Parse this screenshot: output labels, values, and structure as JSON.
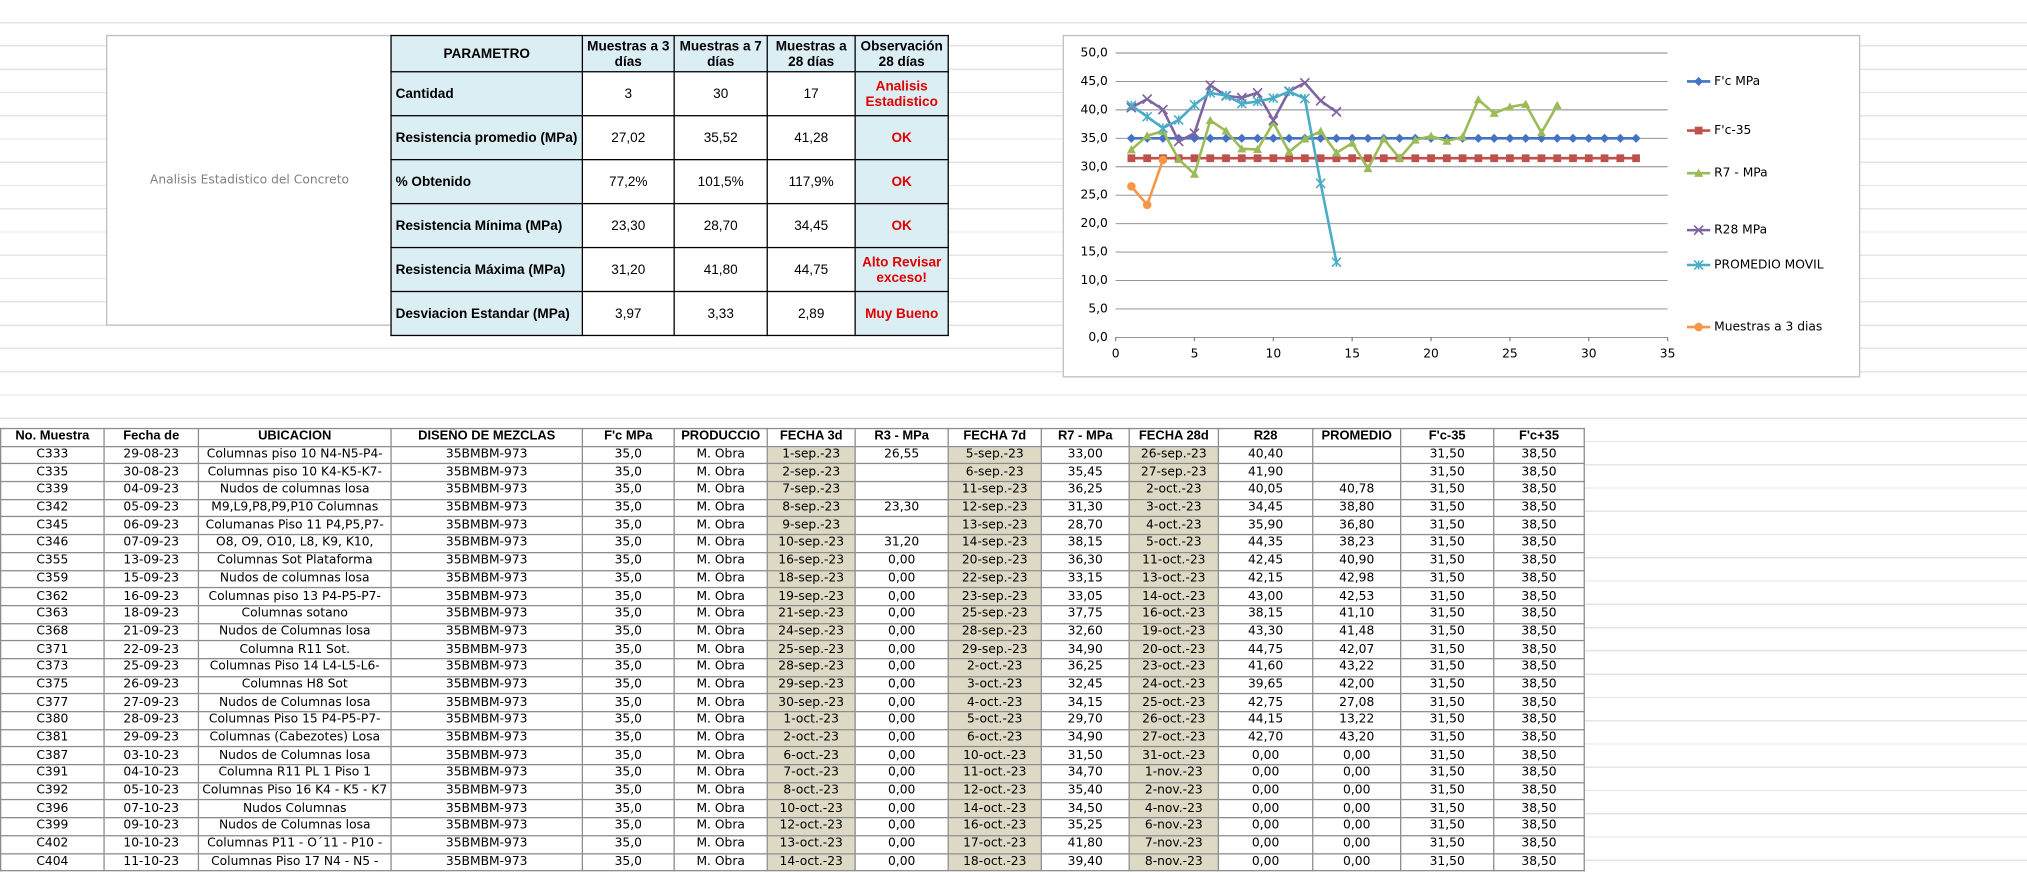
{
  "side_label": "Analisis Estadistico del Concreto",
  "summary_table": {
    "header": [
      "PARAMETRO",
      "Muestras a 3 días",
      "Muestras a 7 días",
      "Muestras a 28 días",
      "Observación 28 días"
    ],
    "rows": [
      [
        "Cantidad",
        "3",
        "30",
        "17",
        "Analisis Estadistico"
      ],
      [
        "Resistencia promedio (MPa)",
        "27,02",
        "35,52",
        "41,28",
        "OK"
      ],
      [
        "% Obtenido",
        "77,2%",
        "101,5%",
        "117,9%",
        "OK"
      ],
      [
        "Resistencia Mínima (MPa)",
        "23,30",
        "28,70",
        "34,45",
        "OK"
      ],
      [
        "Resistencia Máxima (MPa)",
        "31,20",
        "41,80",
        "44,75",
        "Alto Revisar exceso!"
      ],
      [
        "Desviacion Estandar  (MPa)",
        "3,97",
        "3,33",
        "2,89",
        "Muy Bueno"
      ]
    ]
  },
  "chart_data": {
    "type": "line",
    "xlim": [
      0,
      35
    ],
    "xticks": [
      0,
      5,
      10,
      15,
      20,
      25,
      30,
      35
    ],
    "ylim": [
      0,
      50
    ],
    "yticks": [
      {
        "value": 0,
        "label": "0,0"
      },
      {
        "value": 5,
        "label": "5,0"
      },
      {
        "value": 10,
        "label": "10,0"
      },
      {
        "value": 15,
        "label": "15,0"
      },
      {
        "value": 20,
        "label": "20,0"
      },
      {
        "value": 25,
        "label": "25,0"
      },
      {
        "value": 30,
        "label": "30,0"
      },
      {
        "value": 35,
        "label": "35,0"
      },
      {
        "value": 40,
        "label": "40,0"
      },
      {
        "value": 45,
        "label": "45,0"
      },
      {
        "value": 50,
        "label": "50,0"
      }
    ],
    "grid": true,
    "legend": "right",
    "series": [
      {
        "name": "F'c  MPa",
        "color": "#4472c4",
        "marker": "diamond",
        "x": [
          1,
          2,
          3,
          4,
          5,
          6,
          7,
          8,
          9,
          10,
          11,
          12,
          13,
          14,
          15,
          16,
          17,
          18,
          19,
          20,
          21,
          22,
          23,
          24,
          25,
          26,
          27,
          28,
          29,
          30,
          31,
          32,
          33
        ],
        "values": [
          35,
          35,
          35,
          35,
          35,
          35,
          35,
          35,
          35,
          35,
          35,
          35,
          35,
          35,
          35,
          35,
          35,
          35,
          35,
          35,
          35,
          35,
          35,
          35,
          35,
          35,
          35,
          35,
          35,
          35,
          35,
          35,
          35
        ]
      },
      {
        "name": "F'c-35",
        "color": "#c0504d",
        "marker": "square",
        "x": [
          1,
          2,
          3,
          4,
          5,
          6,
          7,
          8,
          9,
          10,
          11,
          12,
          13,
          14,
          15,
          16,
          17,
          18,
          19,
          20,
          21,
          22,
          23,
          24,
          25,
          26,
          27,
          28,
          29,
          30,
          31,
          32,
          33
        ],
        "values": [
          31.5,
          31.5,
          31.5,
          31.5,
          31.5,
          31.5,
          31.5,
          31.5,
          31.5,
          31.5,
          31.5,
          31.5,
          31.5,
          31.5,
          31.5,
          31.5,
          31.5,
          31.5,
          31.5,
          31.5,
          31.5,
          31.5,
          31.5,
          31.5,
          31.5,
          31.5,
          31.5,
          31.5,
          31.5,
          31.5,
          31.5,
          31.5,
          31.5
        ]
      },
      {
        "name": "R7 - MPa",
        "color": "#9bbb59",
        "marker": "triangle",
        "x": [
          1,
          2,
          3,
          4,
          5,
          6,
          7,
          8,
          9,
          10,
          11,
          12,
          13,
          14,
          15,
          16,
          17,
          18,
          19,
          20,
          21,
          22,
          23,
          24,
          25,
          26,
          27,
          28
        ],
        "values": [
          33.0,
          35.45,
          36.25,
          31.3,
          28.7,
          38.15,
          36.3,
          33.15,
          33.05,
          37.75,
          32.6,
          34.9,
          36.25,
          32.45,
          34.15,
          29.7,
          34.9,
          31.5,
          34.7,
          35.4,
          34.5,
          35.25,
          41.8,
          39.4,
          40.5,
          41.0,
          36.0,
          40.8
        ]
      },
      {
        "name": "R28 MPa",
        "color": "#8064a2",
        "marker": "x",
        "x": [
          1,
          2,
          3,
          4,
          5,
          6,
          7,
          8,
          9,
          10,
          11,
          12,
          13,
          14
        ],
        "values": [
          40.4,
          41.9,
          40.05,
          34.45,
          35.9,
          44.35,
          42.45,
          42.15,
          43.0,
          38.15,
          43.3,
          44.75,
          41.6,
          39.65
        ]
      },
      {
        "name": "PROMEDIO MOVIL",
        "color": "#4bacc6",
        "marker": "star",
        "x": [
          1,
          2,
          3,
          4,
          5,
          6,
          7,
          8,
          9,
          10,
          11,
          12,
          13,
          14
        ],
        "values": [
          40.78,
          38.8,
          36.8,
          38.23,
          40.9,
          42.98,
          42.53,
          41.1,
          41.48,
          42.07,
          43.22,
          42.0,
          27.08,
          13.22
        ]
      },
      {
        "name": "Muestras a 3 dias",
        "color": "#f79646",
        "marker": "circle",
        "x": [
          1,
          2,
          3
        ],
        "values": [
          26.55,
          23.3,
          31.2
        ]
      }
    ]
  },
  "main_table": {
    "header": [
      "No. Muestra",
      "Fecha de",
      "UBICACION",
      "DISEÑO DE MEZCLAS",
      "F'c  MPa",
      "PRODUCCIO",
      "FECHA 3d",
      "R3 - MPa",
      "FECHA 7d",
      "R7 - MPa",
      "FECHA 28d",
      "R28",
      "PROMEDIO",
      "F'c-35",
      "F'c+35"
    ],
    "rows": [
      [
        "C333",
        "29-08-23",
        "Columnas piso 10 N4-N5-P4-",
        "35BMBM-973",
        "35,0",
        "M. Obra",
        "1-sep.-23",
        "26,55",
        "5-sep.-23",
        "33,00",
        "26-sep.-23",
        "40,40",
        "",
        "31,50",
        "38,50"
      ],
      [
        "C335",
        "30-08-23",
        "Columnas piso 10 K4-K5-K7-",
        "35BMBM-973",
        "35,0",
        "M. Obra",
        "2-sep.-23",
        "",
        "6-sep.-23",
        "35,45",
        "27-sep.-23",
        "41,90",
        "",
        "31,50",
        "38,50"
      ],
      [
        "C339",
        "04-09-23",
        "Nudos de columnas losa",
        "35BMBM-973",
        "35,0",
        "M. Obra",
        "7-sep.-23",
        "",
        "11-sep.-23",
        "36,25",
        "2-oct.-23",
        "40,05",
        "40,78",
        "31,50",
        "38,50"
      ],
      [
        "C342",
        "05-09-23",
        "M9,L9,P8,P9,P10 Columnas",
        "35BMBM-973",
        "35,0",
        "M. Obra",
        "8-sep.-23",
        "23,30",
        "12-sep.-23",
        "31,30",
        "3-oct.-23",
        "34,45",
        "38,80",
        "31,50",
        "38,50"
      ],
      [
        "C345",
        "06-09-23",
        "Columanas Piso 11 P4,P5,P7-",
        "35BMBM-973",
        "35,0",
        "M. Obra",
        "9-sep.-23",
        "",
        "13-sep.-23",
        "28,70",
        "4-oct.-23",
        "35,90",
        "36,80",
        "31,50",
        "38,50"
      ],
      [
        "C346",
        "07-09-23",
        "O8, O9, O10, L8, K9, K10,",
        "35BMBM-973",
        "35,0",
        "M. Obra",
        "10-sep.-23",
        "31,20",
        "14-sep.-23",
        "38,15",
        "5-oct.-23",
        "44,35",
        "38,23",
        "31,50",
        "38,50"
      ],
      [
        "C355",
        "13-09-23",
        "Columnas Sot Plataforma",
        "35BMBM-973",
        "35,0",
        "M. Obra",
        "16-sep.-23",
        "0,00",
        "20-sep.-23",
        "36,30",
        "11-oct.-23",
        "42,45",
        "40,90",
        "31,50",
        "38,50"
      ],
      [
        "C359",
        "15-09-23",
        "Nudos de columnas losa",
        "35BMBM-973",
        "35,0",
        "M. Obra",
        "18-sep.-23",
        "0,00",
        "22-sep.-23",
        "33,15",
        "13-oct.-23",
        "42,15",
        "42,98",
        "31,50",
        "38,50"
      ],
      [
        "C362",
        "16-09-23",
        "Columnas piso 13 P4-P5-P7-",
        "35BMBM-973",
        "35,0",
        "M. Obra",
        "19-sep.-23",
        "0,00",
        "23-sep.-23",
        "33,05",
        "14-oct.-23",
        "43,00",
        "42,53",
        "31,50",
        "38,50"
      ],
      [
        "C363",
        "18-09-23",
        "Columnas sotano",
        "35BMBM-973",
        "35,0",
        "M. Obra",
        "21-sep.-23",
        "0,00",
        "25-sep.-23",
        "37,75",
        "16-oct.-23",
        "38,15",
        "41,10",
        "31,50",
        "38,50"
      ],
      [
        "C368",
        "21-09-23",
        "Nudos de Columnas losa",
        "35BMBM-973",
        "35,0",
        "M. Obra",
        "24-sep.-23",
        "0,00",
        "28-sep.-23",
        "32,60",
        "19-oct.-23",
        "43,30",
        "41,48",
        "31,50",
        "38,50"
      ],
      [
        "C371",
        "22-09-23",
        "Columna R11 Sot.",
        "35BMBM-973",
        "35,0",
        "M. Obra",
        "25-sep.-23",
        "0,00",
        "29-sep.-23",
        "34,90",
        "20-oct.-23",
        "44,75",
        "42,07",
        "31,50",
        "38,50"
      ],
      [
        "C373",
        "25-09-23",
        "Columnas Piso 14 L4-L5-L6-",
        "35BMBM-973",
        "35,0",
        "M. Obra",
        "28-sep.-23",
        "0,00",
        "2-oct.-23",
        "36,25",
        "23-oct.-23",
        "41,60",
        "43,22",
        "31,50",
        "38,50"
      ],
      [
        "C375",
        "26-09-23",
        "Columnas H8 Sot",
        "35BMBM-973",
        "35,0",
        "M. Obra",
        "29-sep.-23",
        "0,00",
        "3-oct.-23",
        "32,45",
        "24-oct.-23",
        "39,65",
        "42,00",
        "31,50",
        "38,50"
      ],
      [
        "C377",
        "27-09-23",
        "Nudos de Columnas losa",
        "35BMBM-973",
        "35,0",
        "M. Obra",
        "30-sep.-23",
        "0,00",
        "4-oct.-23",
        "34,15",
        "25-oct.-23",
        "42,75",
        "27,08",
        "31,50",
        "38,50"
      ],
      [
        "C380",
        "28-09-23",
        "Columnas Piso 15 P4-P5-P7-",
        "35BMBM-973",
        "35,0",
        "M. Obra",
        "1-oct.-23",
        "0,00",
        "5-oct.-23",
        "29,70",
        "26-oct.-23",
        "44,15",
        "13,22",
        "31,50",
        "38,50"
      ],
      [
        "C381",
        "29-09-23",
        "Columnas (Cabezotes) Losa",
        "35BMBM-973",
        "35,0",
        "M. Obra",
        "2-oct.-23",
        "0,00",
        "6-oct.-23",
        "34,90",
        "27-oct.-23",
        "42,70",
        "43,20",
        "31,50",
        "38,50"
      ],
      [
        "C387",
        "03-10-23",
        "Nudos de Columnas losa",
        "35BMBM-973",
        "35,0",
        "M. Obra",
        "6-oct.-23",
        "0,00",
        "10-oct.-23",
        "31,50",
        "31-oct.-23",
        "0,00",
        "0,00",
        "31,50",
        "38,50"
      ],
      [
        "C391",
        "04-10-23",
        "Columna R11 PL 1 Piso 1",
        "35BMBM-973",
        "35,0",
        "M. Obra",
        "7-oct.-23",
        "0,00",
        "11-oct.-23",
        "34,70",
        "1-nov.-23",
        "0,00",
        "0,00",
        "31,50",
        "38,50"
      ],
      [
        "C392",
        "05-10-23",
        "Columnas Piso 16 K4 - K5 - K7",
        "35BMBM-973",
        "35,0",
        "M. Obra",
        "8-oct.-23",
        "0,00",
        "12-oct.-23",
        "35,40",
        "2-nov.-23",
        "0,00",
        "0,00",
        "31,50",
        "38,50"
      ],
      [
        "C396",
        "07-10-23",
        "Nudos Columnas",
        "35BMBM-973",
        "35,0",
        "M. Obra",
        "10-oct.-23",
        "0,00",
        "14-oct.-23",
        "34,50",
        "4-nov.-23",
        "0,00",
        "0,00",
        "31,50",
        "38,50"
      ],
      [
        "C399",
        "09-10-23",
        "Nudos de Columnas losa",
        "35BMBM-973",
        "35,0",
        "M. Obra",
        "12-oct.-23",
        "0,00",
        "16-oct.-23",
        "35,25",
        "6-nov.-23",
        "0,00",
        "0,00",
        "31,50",
        "38,50"
      ],
      [
        "C402",
        "10-10-23",
        "Columnas P11 - O´11 - P10 -",
        "35BMBM-973",
        "35,0",
        "M. Obra",
        "13-oct.-23",
        "0,00",
        "17-oct.-23",
        "41,80",
        "7-nov.-23",
        "0,00",
        "0,00",
        "31,50",
        "38,50"
      ],
      [
        "C404",
        "11-10-23",
        "Columnas Piso 17 N4 - N5 -",
        "35BMBM-973",
        "35,0",
        "M. Obra",
        "14-oct.-23",
        "0,00",
        "18-oct.-23",
        "39,40",
        "8-nov.-23",
        "0,00",
        "0,00",
        "31,50",
        "38,50"
      ]
    ]
  }
}
